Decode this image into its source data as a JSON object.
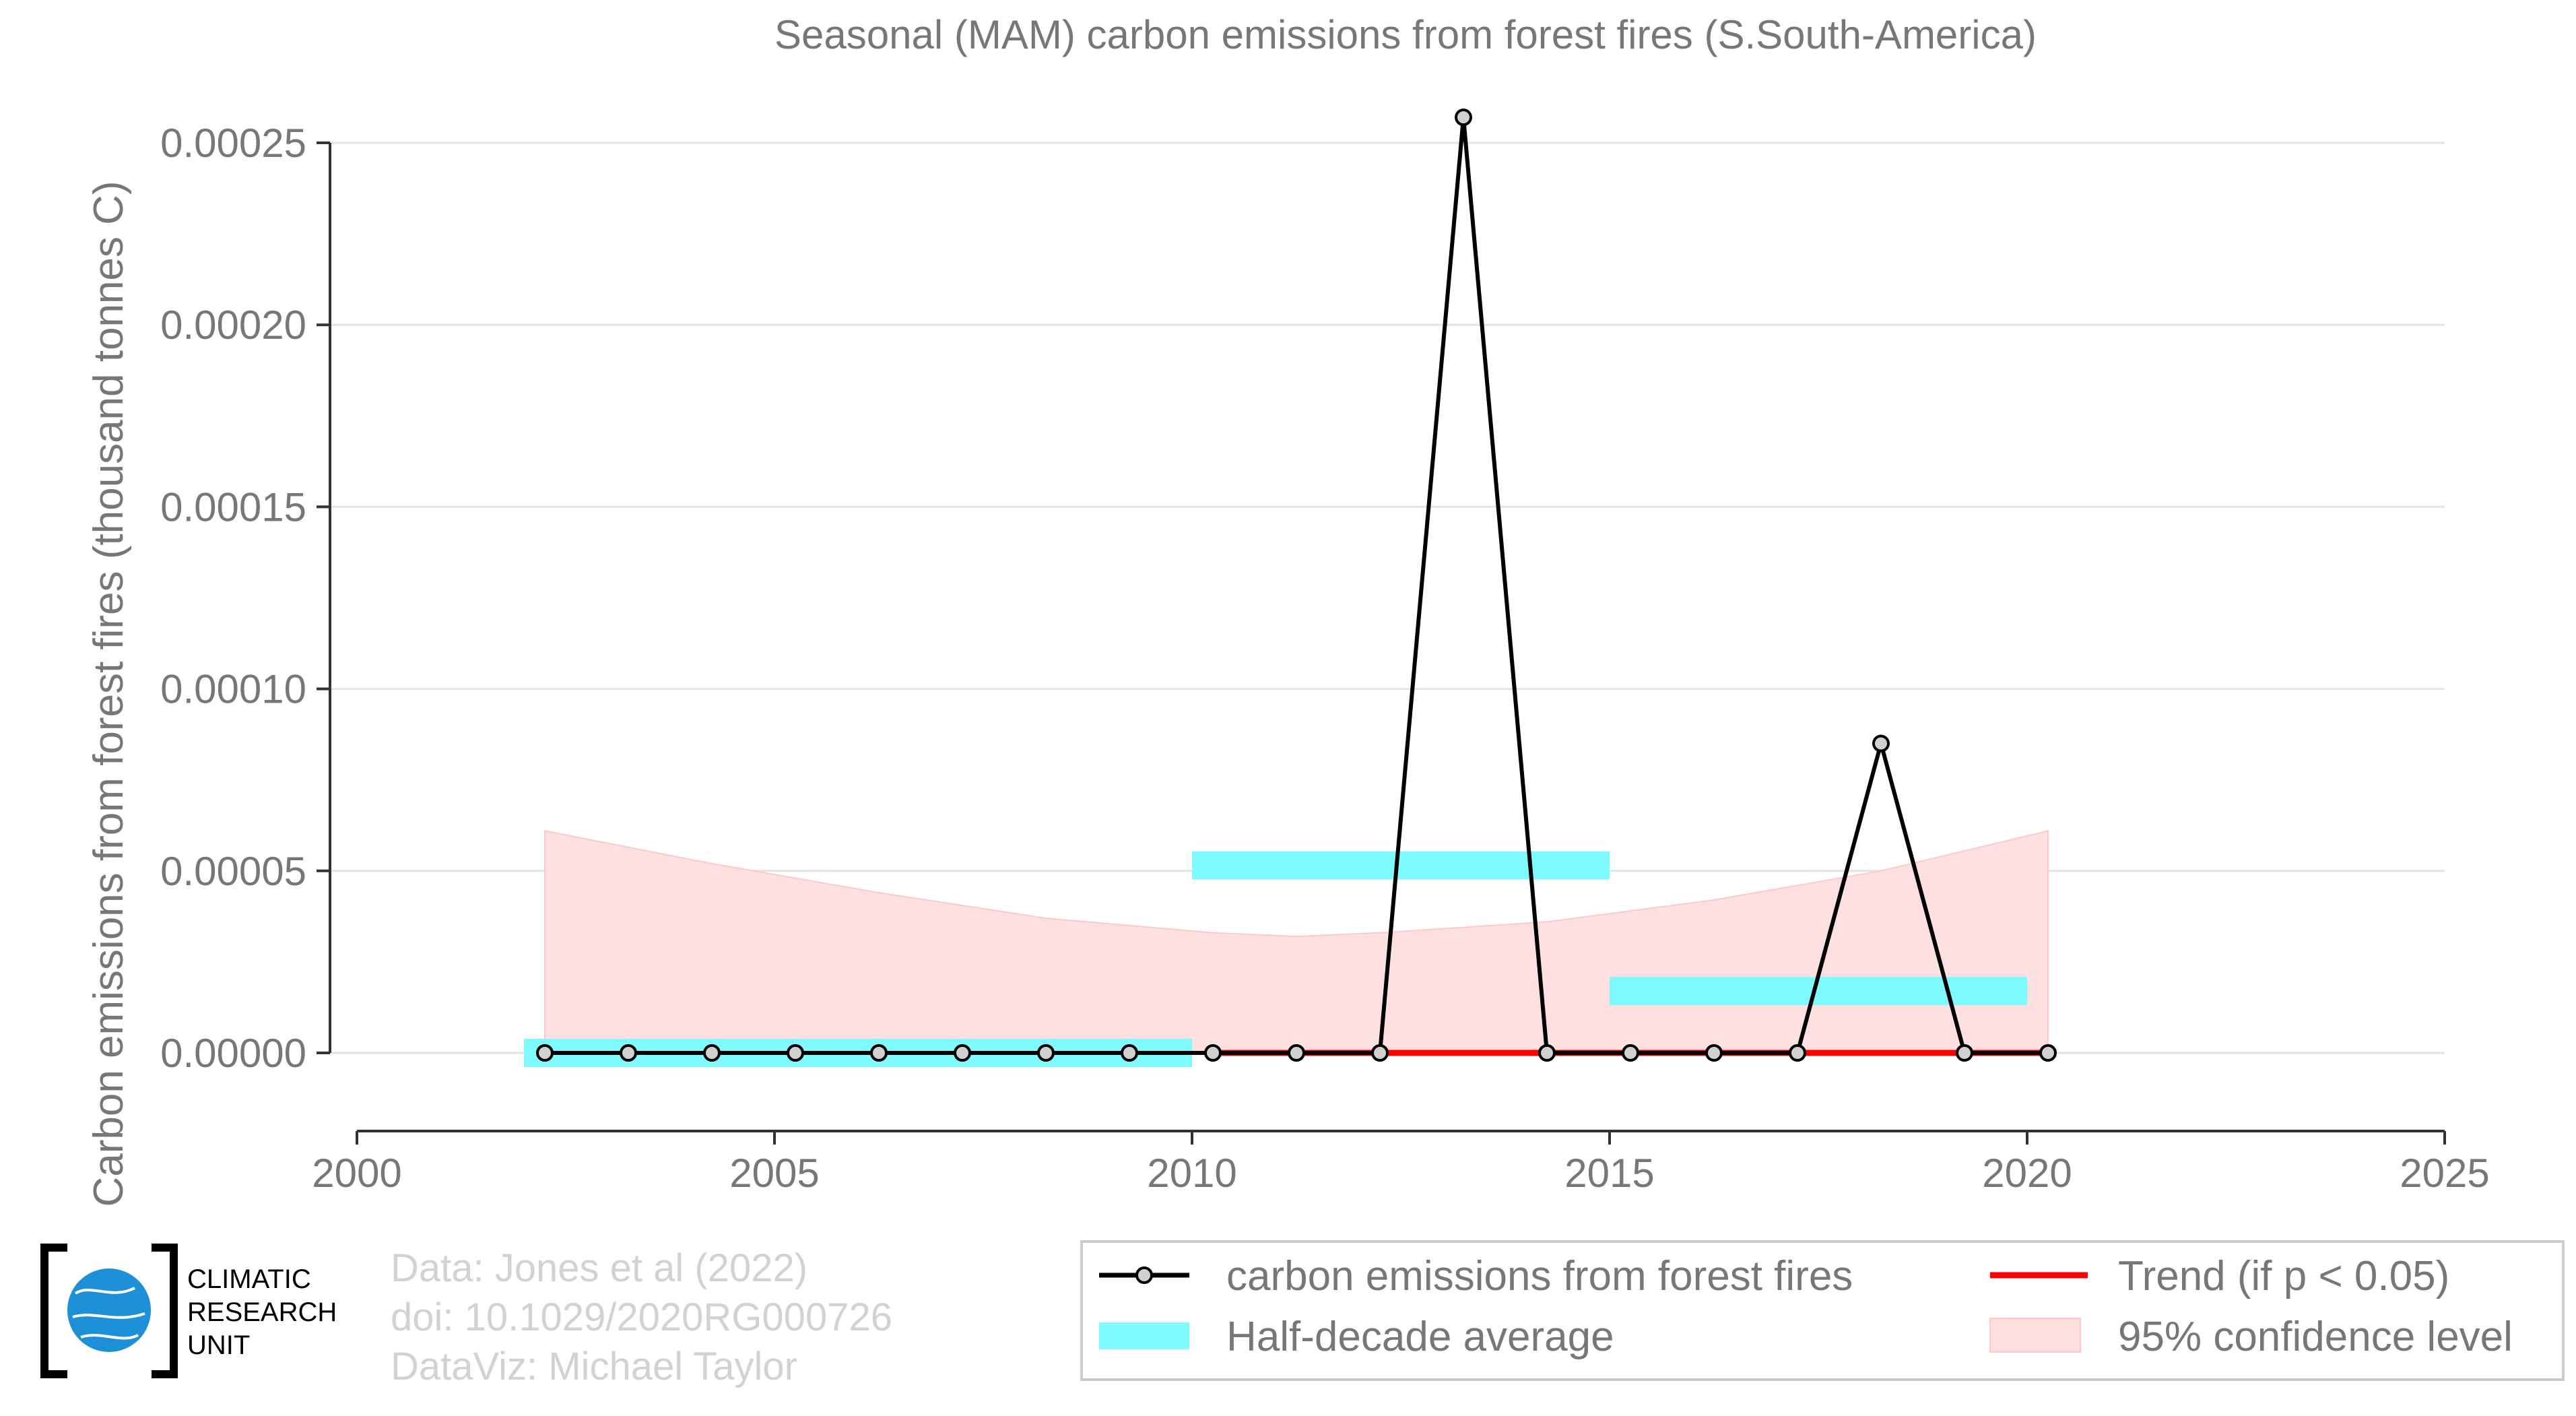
{
  "chart_data": {
    "type": "line",
    "title": "Seasonal (MAM) carbon emissions from forest fires (S.South-America)",
    "ylabel": "Carbon emissions from forest fires (thousand tonnes C)",
    "xlabel": "",
    "xlim": [
      2000,
      2025
    ],
    "ylim": [
      -2e-05,
      0.00026
    ],
    "x_ticks": [
      2000,
      2005,
      2010,
      2015,
      2020,
      2025
    ],
    "x_tick_labels": [
      "2000",
      "2005",
      "2010",
      "2015",
      "2020",
      "2025"
    ],
    "y_ticks": [
      0,
      5e-05,
      0.0001,
      0.00015,
      0.0002,
      0.00025
    ],
    "y_tick_labels": [
      "0.00000",
      "0.00005",
      "0.00010",
      "0.00015",
      "0.00020",
      "0.00025"
    ],
    "grid": true,
    "series": [
      {
        "name": "carbon emissions from forest fires",
        "color": "#000000",
        "x": [
          2002.25,
          2003.25,
          2004.25,
          2005.25,
          2006.25,
          2007.25,
          2008.25,
          2009.25,
          2010.25,
          2011.25,
          2012.25,
          2013.25,
          2014.25,
          2015.25,
          2016.25,
          2017.25,
          2018.25,
          2019.25,
          2020.25
        ],
        "values": [
          0,
          0,
          0,
          0,
          0,
          0,
          0,
          0,
          0,
          0,
          0,
          0.000257,
          0,
          0,
          0,
          0,
          8.5e-05,
          0,
          0
        ]
      },
      {
        "name": "Half-decade average",
        "color": "#7ffbff",
        "segments": [
          {
            "x0": 2002.0,
            "x1": 2010.0,
            "value": 0
          },
          {
            "x0": 2010.0,
            "x1": 2015.0,
            "value": 5.15e-05
          },
          {
            "x0": 2015.0,
            "x1": 2020.0,
            "value": 1.7e-05
          }
        ]
      },
      {
        "name": "Trend (if p < 0.05)",
        "color": "#ff0000",
        "x": [
          2010.25,
          2020.25
        ],
        "values": [
          0,
          0
        ]
      },
      {
        "name": "95% confidence level",
        "color": "#ffdede",
        "x": [
          2002.25,
          2004.25,
          2006.25,
          2008.25,
          2010.25,
          2011.25,
          2012.25,
          2014.25,
          2016.25,
          2018.25,
          2020.25
        ],
        "upper": [
          6.1e-05,
          5.2e-05,
          4.4e-05,
          3.7e-05,
          3.3e-05,
          3.2e-05,
          3.3e-05,
          3.6e-05,
          4.2e-05,
          5e-05,
          6.1e-05
        ],
        "lower": [
          0,
          0,
          0,
          0,
          0,
          0,
          0,
          0,
          0,
          0,
          0
        ]
      }
    ],
    "legend": {
      "placement": "bottom-right",
      "entries": [
        "carbon emissions from forest fires",
        "Trend (if p < 0.05)",
        "Half-decade average",
        "95% confidence level"
      ]
    }
  },
  "credits": {
    "line1": "Data: Jones et al (2022)",
    "line2": "doi: 10.1029/2020RG000726",
    "line3": "DataViz: Michael Taylor"
  },
  "logo": {
    "line1": "CLIMATIC",
    "line2": "RESEARCH",
    "line3": "UNIT"
  }
}
